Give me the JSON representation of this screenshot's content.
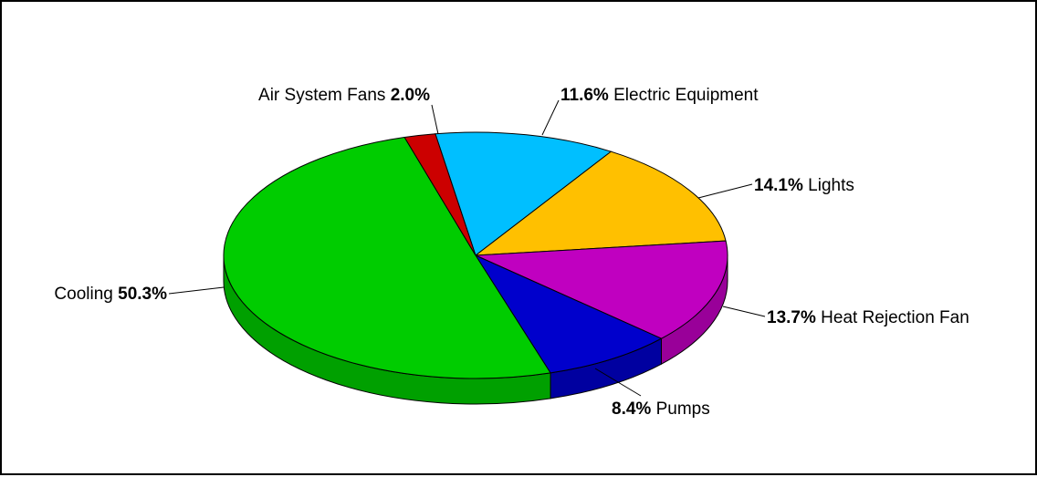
{
  "chart_data": {
    "type": "pie",
    "style": "3d",
    "title": "",
    "slices": [
      {
        "label": "Electric Equipment",
        "value": 11.6,
        "value_label": "11.6%",
        "color": "#00BFFF",
        "side_color": "#0099CC"
      },
      {
        "label": "Lights",
        "value": 14.1,
        "value_label": "14.1%",
        "color": "#FFC000",
        "side_color": "#CC9900"
      },
      {
        "label": "Heat Rejection Fan",
        "value": 13.7,
        "value_label": "13.7%",
        "color": "#C000C0",
        "side_color": "#990099"
      },
      {
        "label": "Pumps",
        "value": 8.4,
        "value_label": "8.4%",
        "color": "#0000CC",
        "side_color": "#0000A0"
      },
      {
        "label": "Cooling",
        "value": 50.3,
        "value_label": "50.3%",
        "color": "#00CC00",
        "side_color": "#00A000"
      },
      {
        "label": "Air System Fans",
        "value": 2.0,
        "value_label": "2.0%",
        "color": "#CC0000",
        "side_color": "#A00000"
      }
    ]
  }
}
